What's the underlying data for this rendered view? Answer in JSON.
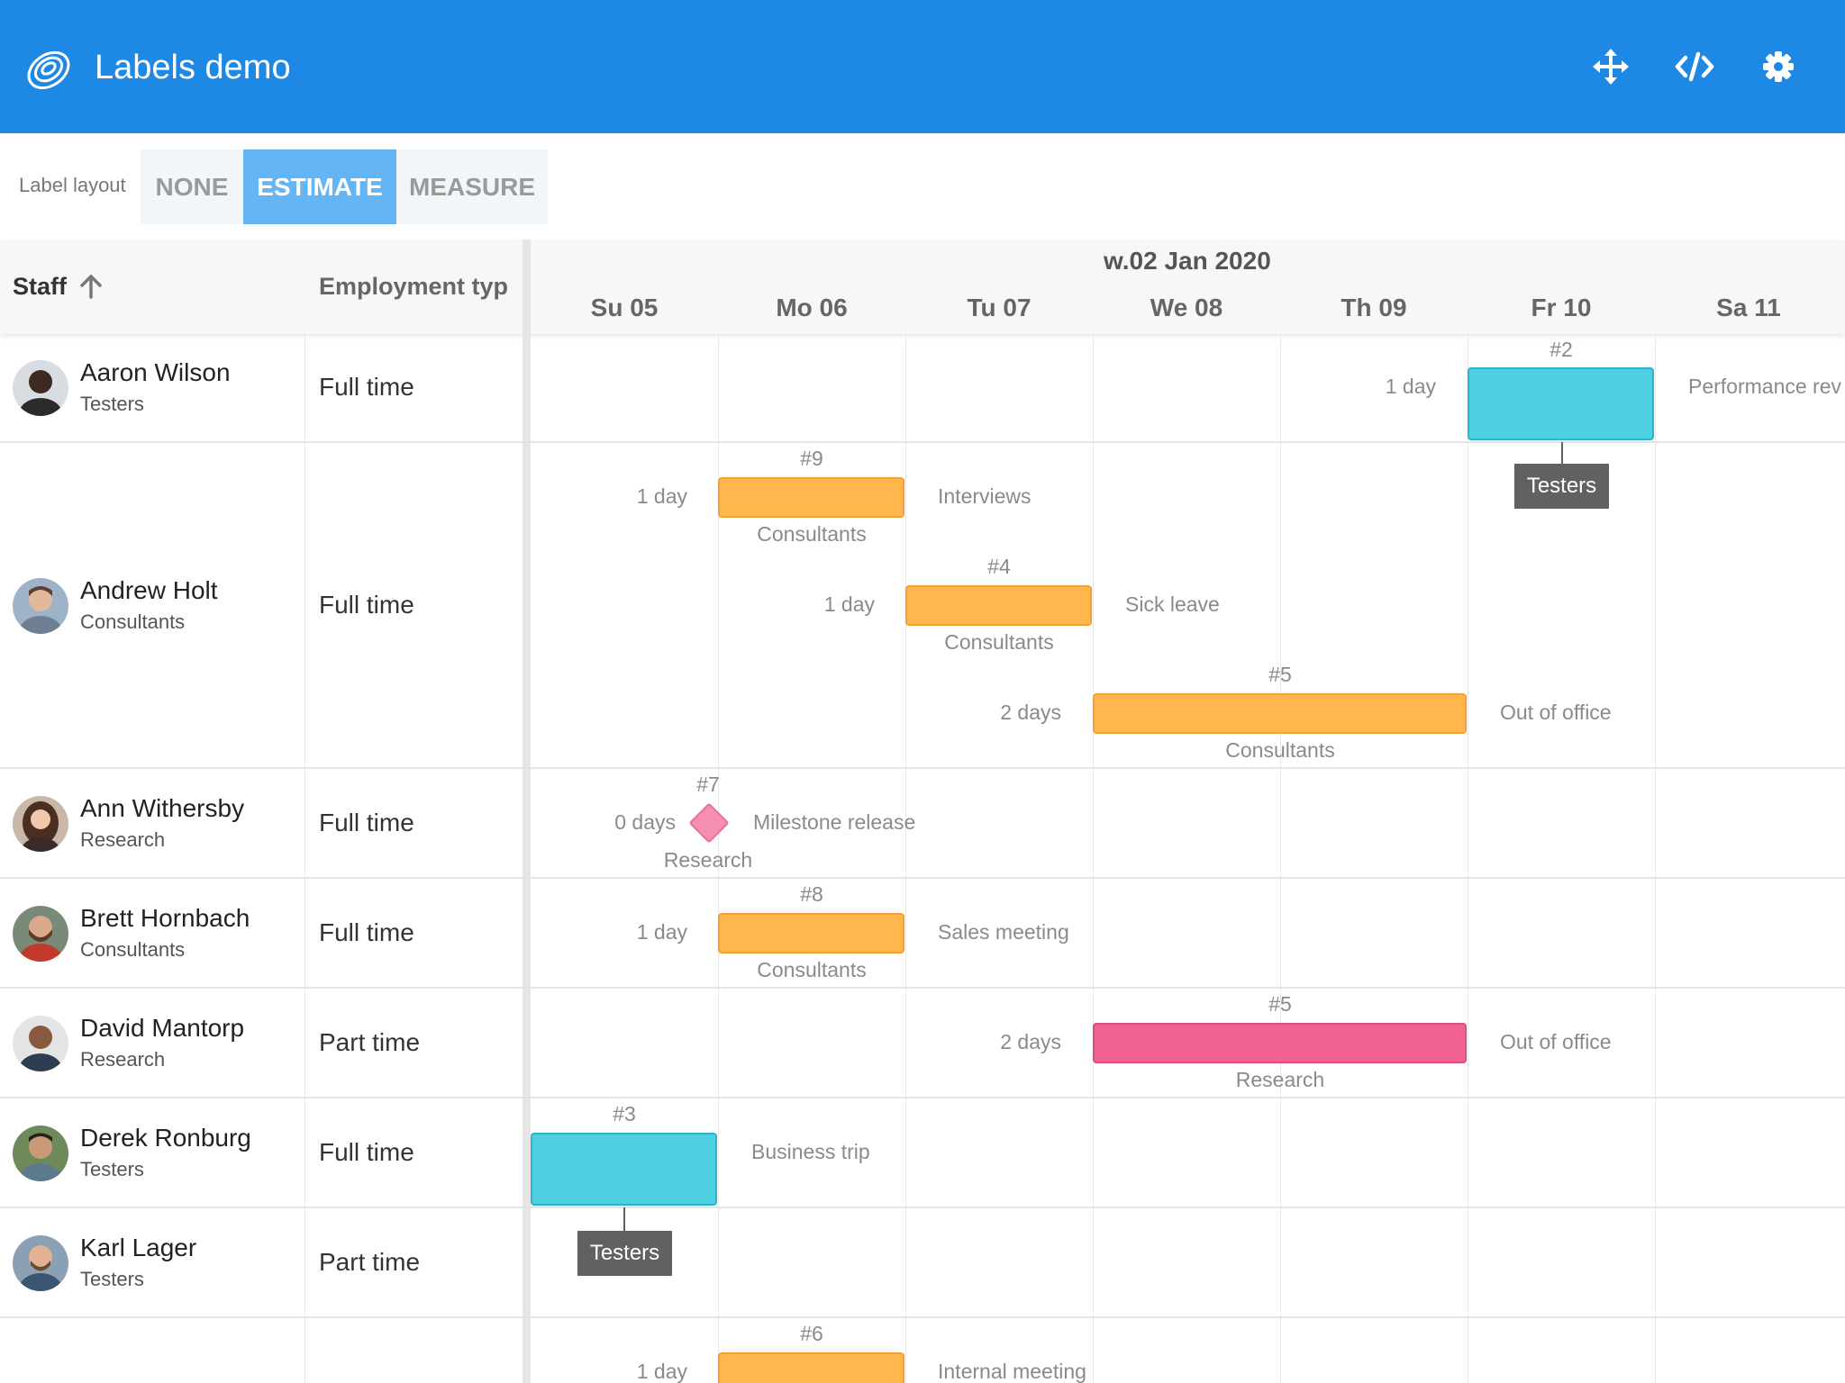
{
  "app": {
    "title": "Labels demo"
  },
  "header_icons": [
    "move-icon",
    "code-icon",
    "gear-icon"
  ],
  "toolbar": {
    "label": "Label layout",
    "options": [
      {
        "label": "NONE",
        "selected": false
      },
      {
        "label": "ESTIMATE",
        "selected": true
      },
      {
        "label": "MEASURE",
        "selected": false
      }
    ]
  },
  "grid": {
    "columns": {
      "staff": "Staff",
      "employment": "Employment type"
    },
    "sort_icon": "arrow-up-icon"
  },
  "timeline": {
    "week": "w.02 Jan 2020",
    "days": [
      "Su 05",
      "Mo 06",
      "Tu 07",
      "We 08",
      "Th 09",
      "Fr 10",
      "Sa 11"
    ]
  },
  "rows": [
    {
      "name": "Aaron Wilson",
      "team": "Testers",
      "employment": "Full time"
    },
    {
      "name": "Andrew Holt",
      "team": "Consultants",
      "employment": "Full time"
    },
    {
      "name": "Ann Withersby",
      "team": "Research",
      "employment": "Full time"
    },
    {
      "name": "Brett Hornbach",
      "team": "Consultants",
      "employment": "Full time"
    },
    {
      "name": "David Mantorp",
      "team": "Research",
      "employment": "Part time"
    },
    {
      "name": "Derek Ronburg",
      "team": "Testers",
      "employment": "Full time"
    },
    {
      "name": "Karl Lager",
      "team": "Testers",
      "employment": "Part time"
    }
  ],
  "events": [
    {
      "id": "#2",
      "duration": "1 day",
      "name": "Performance rev",
      "team": "Testers",
      "color": "#4dd0e1"
    },
    {
      "id": "#9",
      "duration": "1 day",
      "name": "Interviews",
      "team": "Consultants",
      "color": "#ffb74d"
    },
    {
      "id": "#4",
      "duration": "1 day",
      "name": "Sick leave",
      "team": "Consultants",
      "color": "#ffb74d"
    },
    {
      "id": "#5",
      "duration": "2 days",
      "name": "Out of office",
      "team": "Consultants",
      "color": "#ffb74d"
    },
    {
      "id": "#7",
      "duration": "0 days",
      "name": "Milestone release",
      "team": "Research",
      "color": "#f48fb1"
    },
    {
      "id": "#8",
      "duration": "1 day",
      "name": "Sales meeting",
      "team": "Consultants",
      "color": "#ffb74d"
    },
    {
      "id": "#5",
      "duration": "2 days",
      "name": "Out of office",
      "team": "Research",
      "color": "#f06292"
    },
    {
      "id": "#3",
      "name": "Business trip",
      "team": "Testers",
      "color": "#4dd0e1"
    },
    {
      "id": "#6",
      "duration": "1 day",
      "name": "Internal meeting",
      "color": "#ffb74d"
    }
  ]
}
